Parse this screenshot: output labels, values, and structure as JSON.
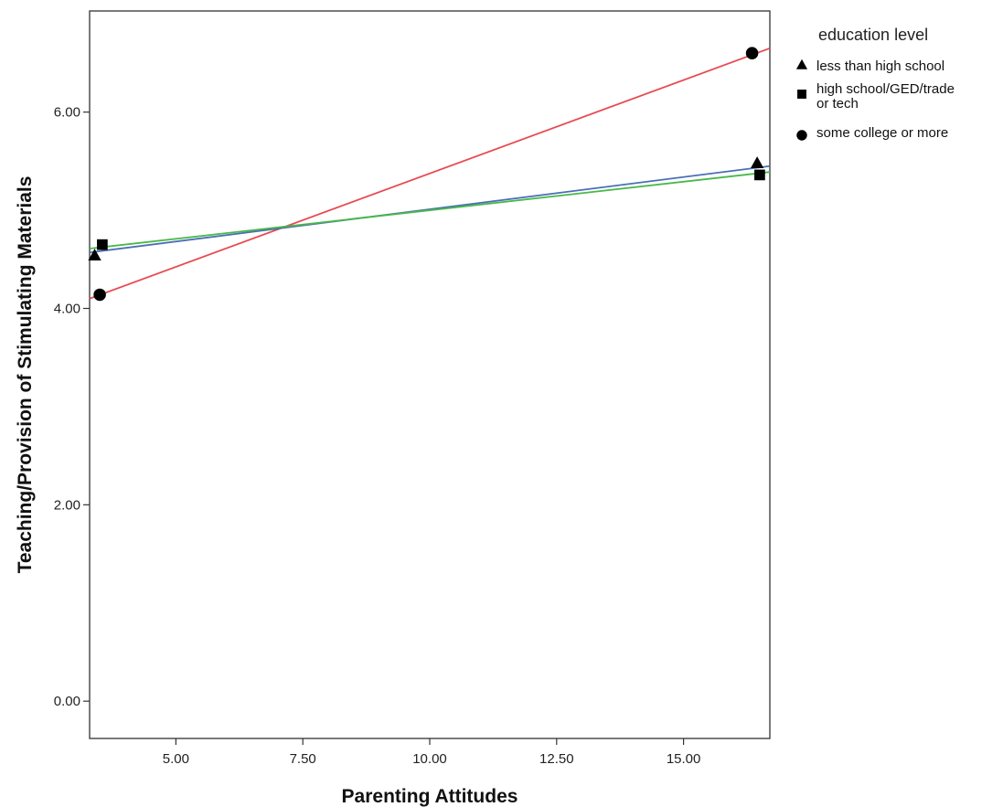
{
  "chart_data": {
    "type": "scatter",
    "xlabel": "Parenting Attitudes",
    "ylabel": "Teaching/Provision of Stimulating Materials",
    "xlim": [
      3.3,
      16.7
    ],
    "ylim": [
      -0.38,
      7.03
    ],
    "x_ticks": [
      5.0,
      7.5,
      10.0,
      12.5,
      15.0
    ],
    "x_tick_labels": [
      "5.00",
      "7.50",
      "10.00",
      "12.50",
      "15.00"
    ],
    "y_ticks": [
      0.0,
      2.0,
      4.0,
      6.0
    ],
    "y_tick_labels": [
      "0.00",
      "2.00",
      "4.00",
      "6.00"
    ],
    "grid": false,
    "legend": {
      "title": "education level",
      "placement": "right"
    },
    "series": [
      {
        "name": "less than high school",
        "marker": "triangle",
        "points": [
          [
            3.4,
            4.54
          ],
          [
            16.45,
            5.48
          ]
        ],
        "fit_line": [
          [
            3.3,
            4.57
          ],
          [
            16.7,
            5.45
          ]
        ],
        "line_color": "#4a6fb5"
      },
      {
        "name": "high school/GED/trade or tech",
        "legend_lines": [
          "high school/GED/trade",
          "or tech"
        ],
        "marker": "square",
        "points": [
          [
            3.55,
            4.65
          ],
          [
            16.5,
            5.36
          ]
        ],
        "fit_line": [
          [
            3.3,
            4.61
          ],
          [
            16.7,
            5.39
          ]
        ],
        "line_color": "#48b848"
      },
      {
        "name": "some college or more",
        "marker": "circle",
        "points": [
          [
            3.5,
            4.14
          ],
          [
            16.35,
            6.6
          ]
        ],
        "fit_line": [
          [
            3.3,
            4.1
          ],
          [
            16.7,
            6.65
          ]
        ],
        "line_color": "#e8494f"
      }
    ]
  }
}
